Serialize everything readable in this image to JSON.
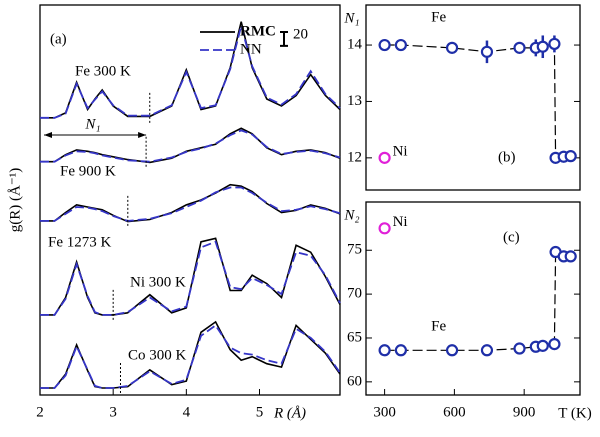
{
  "chart_data": [
    {
      "type": "line",
      "panel_label": "(a)",
      "x_label": "R (Å)",
      "y_label": "g(R) (Å⁻¹)",
      "xlim": [
        2,
        6.1
      ],
      "xticks": [
        2,
        3,
        4,
        5
      ],
      "ylim": [
        0,
        560
      ],
      "scale_bar": 20,
      "range_label": "N₁",
      "legend": [
        {
          "name": "RMC",
          "color": "#000000"
        },
        {
          "name": "NN",
          "color": "#3535c8"
        }
      ],
      "x": [
        2.0,
        2.2,
        2.35,
        2.5,
        2.65,
        2.75,
        2.85,
        3.0,
        3.2,
        3.5,
        3.8,
        4.0,
        4.2,
        4.4,
        4.6,
        4.75,
        4.9,
        5.1,
        5.3,
        5.5,
        5.7,
        5.9,
        6.1
      ],
      "curves": [
        {
          "label": "Fe 300 K",
          "cutoff": 3.5,
          "rmc": [
            398,
            398,
            405,
            449,
            410,
            425,
            438,
            415,
            400,
            400,
            415,
            467,
            410,
            415,
            470,
            536,
            470,
            425,
            415,
            430,
            460,
            430,
            410
          ],
          "nn": [
            398,
            398,
            404,
            447,
            412,
            424,
            436,
            416,
            401,
            401,
            416,
            464,
            412,
            416,
            468,
            530,
            472,
            427,
            417,
            432,
            465,
            432,
            412
          ]
        },
        {
          "label": "Fe 900 K",
          "cutoff": 3.45,
          "rmc": [
            335,
            335,
            345,
            352,
            350,
            348,
            345,
            342,
            338,
            334,
            340,
            350,
            355,
            360,
            375,
            383,
            375,
            355,
            345,
            350,
            352,
            348,
            340
          ],
          "nn": [
            335,
            335,
            344,
            350,
            349,
            347,
            344,
            341,
            337,
            335,
            341,
            349,
            354,
            361,
            373,
            380,
            374,
            356,
            346,
            349,
            351,
            347,
            341
          ]
        },
        {
          "label": "Fe 1273 K",
          "cutoff": 3.2,
          "rmc": [
            250,
            250,
            262,
            273,
            270,
            268,
            266,
            258,
            249,
            252,
            262,
            273,
            280,
            290,
            302,
            300,
            292,
            275,
            262,
            265,
            273,
            268,
            260
          ],
          "nn": [
            250,
            250,
            260,
            270,
            269,
            267,
            264,
            257,
            250,
            253,
            261,
            270,
            279,
            291,
            298,
            298,
            290,
            276,
            264,
            266,
            271,
            267,
            261
          ]
        },
        {
          "label": "Ni 300 K",
          "cutoff": 3.0,
          "rmc": [
            115,
            115,
            140,
            191,
            140,
            118,
            115,
            115,
            118,
            144,
            118,
            125,
            220,
            225,
            150,
            150,
            172,
            160,
            140,
            215,
            205,
            170,
            130
          ],
          "nn": [
            115,
            115,
            138,
            188,
            142,
            119,
            115,
            115,
            119,
            140,
            120,
            127,
            212,
            220,
            155,
            152,
            168,
            158,
            145,
            205,
            200,
            172,
            132
          ]
        },
        {
          "label": "Co 300 K",
          "cutoff": 3.1,
          "rmc": [
            10,
            10,
            30,
            72,
            35,
            12,
            10,
            10,
            12,
            36,
            15,
            20,
            90,
            105,
            65,
            50,
            55,
            45,
            40,
            100,
            80,
            60,
            30
          ],
          "nn": [
            10,
            10,
            28,
            70,
            36,
            13,
            10,
            10,
            13,
            34,
            16,
            22,
            85,
            100,
            68,
            60,
            58,
            50,
            45,
            95,
            82,
            62,
            32
          ]
        }
      ]
    },
    {
      "type": "scatter",
      "panel_label": "(b)",
      "y_label": "N₁",
      "xlim": [
        220,
        1140
      ],
      "ylim": [
        11.43,
        14.71
      ],
      "yticks": [
        12,
        13,
        14
      ],
      "series": [
        {
          "name": "Fe",
          "color": "#1f2fa8",
          "x": [
            300,
            370,
            590,
            740,
            880,
            950,
            980,
            1030,
            1035,
            1070,
            1100
          ],
          "values": [
            14.0,
            14.0,
            13.95,
            13.88,
            13.95,
            13.95,
            13.97,
            14.02,
            12.0,
            12.02,
            12.03
          ],
          "errors": [
            0.1,
            0.1,
            0.1,
            0.2,
            0.1,
            0.15,
            0.2,
            0.15,
            0.05,
            0.05,
            0.05
          ]
        },
        {
          "name": "Ni",
          "color": "#e020d8",
          "x": [
            300
          ],
          "values": [
            12.0
          ]
        }
      ]
    },
    {
      "type": "scatter",
      "panel_label": "(c)",
      "y_label": "N₂",
      "x_label": "T (K)",
      "xlim": [
        220,
        1140
      ],
      "xticks": [
        300,
        600,
        900
      ],
      "ylim": [
        58.5,
        80.5
      ],
      "yticks": [
        60,
        65,
        70,
        75
      ],
      "series": [
        {
          "name": "Fe",
          "color": "#1f2fa8",
          "x": [
            300,
            370,
            590,
            740,
            880,
            950,
            980,
            1030,
            1035,
            1070,
            1100
          ],
          "values": [
            63.6,
            63.6,
            63.6,
            63.6,
            63.8,
            64.0,
            64.1,
            64.3,
            74.8,
            74.3,
            74.3
          ]
        },
        {
          "name": "Ni",
          "color": "#e020d8",
          "x": [
            300
          ],
          "values": [
            77.5
          ]
        }
      ]
    }
  ]
}
